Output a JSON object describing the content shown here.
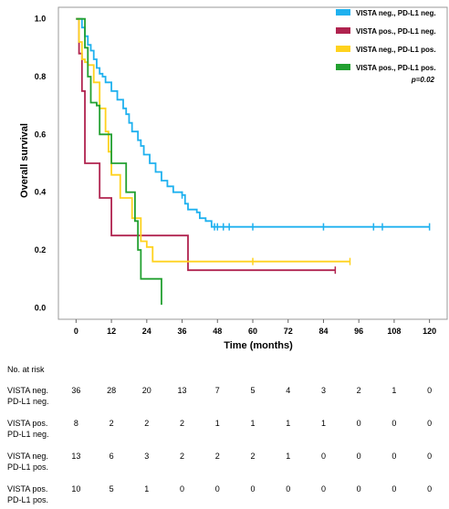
{
  "chart_data": {
    "type": "line",
    "xlabel": "Time (months)",
    "ylabel": "Overall survival",
    "xlim": [
      -6,
      126
    ],
    "ylim": [
      -0.04,
      1.04
    ],
    "xticks": [
      0,
      12,
      24,
      36,
      48,
      60,
      72,
      84,
      96,
      108,
      120
    ],
    "yticks": [
      0.0,
      0.2,
      0.4,
      0.6,
      0.8,
      1.0
    ],
    "ytick_labels": [
      "0.0",
      "0.2",
      "0.4",
      "0.6",
      "0.8",
      "1.0"
    ],
    "legend_position": "top-right",
    "annotation": "p=0.02",
    "series": [
      {
        "name": "VISTA neg., PD-L1 neg.",
        "color": "#1fb1ef",
        "x": [
          0,
          2,
          3,
          4,
          5,
          6,
          7,
          8,
          9,
          10,
          12,
          14,
          16,
          17,
          18,
          19,
          21,
          22,
          23,
          25,
          27,
          29,
          31,
          33,
          36,
          37,
          38,
          41,
          42,
          44,
          46,
          47,
          48
        ],
        "y": [
          1.0,
          0.97,
          0.94,
          0.91,
          0.89,
          0.86,
          0.83,
          0.81,
          0.8,
          0.78,
          0.75,
          0.72,
          0.69,
          0.67,
          0.64,
          0.61,
          0.58,
          0.56,
          0.53,
          0.5,
          0.47,
          0.44,
          0.42,
          0.4,
          0.39,
          0.36,
          0.34,
          0.33,
          0.31,
          0.3,
          0.28,
          0.28,
          0.28
        ],
        "end_x": 120,
        "censor_x": [
          36,
          47,
          48,
          50,
          52,
          60,
          84,
          101,
          104,
          120
        ]
      },
      {
        "name": "VISTA pos., PD-L1 neg.",
        "color": "#b0234f",
        "x": [
          0,
          1,
          2,
          3,
          8,
          12,
          36,
          38
        ],
        "y": [
          1.0,
          0.88,
          0.75,
          0.5,
          0.38,
          0.25,
          0.25,
          0.13
        ],
        "end_x": 88,
        "censor_x": [
          88
        ]
      },
      {
        "name": "VISTA neg., PD-L1 pos.",
        "color": "#ffd21e",
        "x": [
          0,
          1,
          2,
          3,
          4,
          6,
          8,
          10,
          11,
          12,
          15,
          19,
          22,
          24,
          26
        ],
        "y": [
          1.0,
          0.92,
          0.86,
          0.85,
          0.84,
          0.78,
          0.69,
          0.61,
          0.54,
          0.46,
          0.38,
          0.31,
          0.23,
          0.21,
          0.16
        ],
        "end_x": 93,
        "censor_x": [
          60,
          93
        ]
      },
      {
        "name": "VISTA pos., PD-L1 pos.",
        "color": "#22a030",
        "x": [
          0,
          3,
          4,
          5,
          7,
          8,
          12,
          17,
          20,
          21,
          22,
          23,
          29
        ],
        "y": [
          1.0,
          0.9,
          0.8,
          0.71,
          0.7,
          0.6,
          0.5,
          0.4,
          0.3,
          0.2,
          0.1,
          0.1,
          0.01
        ],
        "end_x": 29,
        "censor_x": []
      }
    ]
  },
  "risk_table": {
    "title": "No. at risk",
    "rows": [
      {
        "line1": "VISTA neg.",
        "line2": "PD-L1 neg.",
        "values": [
          "36",
          "28",
          "20",
          "13",
          "7",
          "5",
          "4",
          "3",
          "2",
          "1",
          "0"
        ]
      },
      {
        "line1": "VISTA pos.",
        "line2": "PD-L1 neg.",
        "values": [
          "8",
          "2",
          "2",
          "2",
          "1",
          "1",
          "1",
          "1",
          "0",
          "0",
          "0"
        ]
      },
      {
        "line1": "VISTA neg.",
        "line2": "PD-L1 pos.",
        "values": [
          "13",
          "6",
          "3",
          "2",
          "2",
          "2",
          "1",
          "0",
          "0",
          "0",
          "0"
        ]
      },
      {
        "line1": "VISTA pos.",
        "line2": "PD-L1 pos.",
        "values": [
          "10",
          "5",
          "1",
          "0",
          "0",
          "0",
          "0",
          "0",
          "0",
          "0",
          "0"
        ]
      }
    ]
  }
}
